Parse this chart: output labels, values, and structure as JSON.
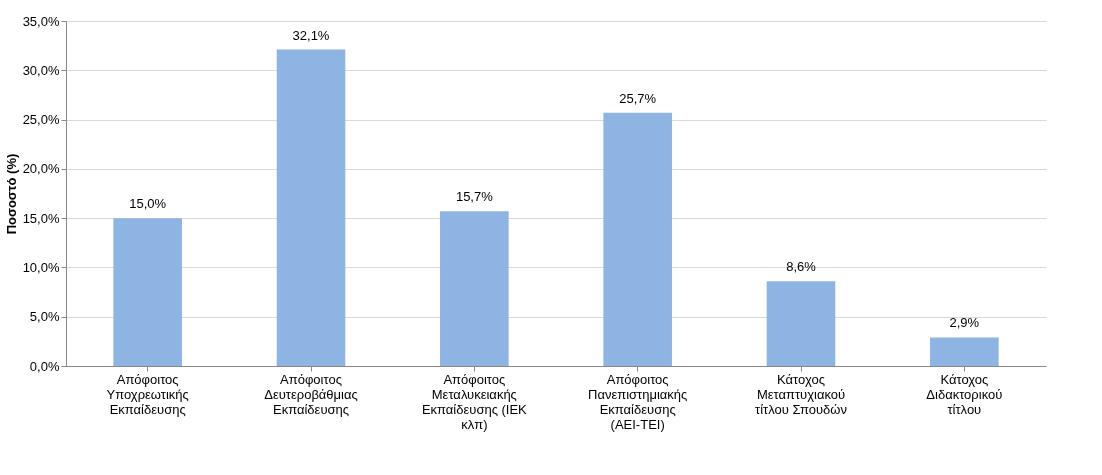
{
  "chart_data": {
    "type": "bar",
    "ylabel": "Ποσοστό (%)",
    "categories": [
      "Απόφοιτος Υποχρεωτικής Εκπαίδευσης",
      "Απόφοιτος Δευτεροβάθμιας Εκπαίδευσης",
      "Απόφοιτος Μεταλυκειακής Εκπαίδευσης (ΙΕΚ κλπ)",
      "Απόφοιτος Πανεπιστημιακής Εκπαίδευσης (ΑΕΙ-ΤΕΙ)",
      "Κάτοχος Μεταπτυχιακού τίτλου Σπουδών",
      "Κάτοχος Διδακτορικού τίτλου"
    ],
    "values": [
      15.0,
      32.1,
      15.7,
      25.7,
      8.6,
      2.9
    ],
    "value_labels": [
      "15,0%",
      "32,1%",
      "15,7%",
      "25,7%",
      "8,6%",
      "2,9%"
    ],
    "color": "#8eb4e3",
    "ylim": [
      0,
      35
    ],
    "yticks": [
      {
        "value": 0,
        "label": "0,0%"
      },
      {
        "value": 5,
        "label": "5,0%"
      },
      {
        "value": 10,
        "label": "10,0%"
      },
      {
        "value": 15,
        "label": "15,0%"
      },
      {
        "value": 20,
        "label": "20,0%"
      },
      {
        "value": 25,
        "label": "25,0%"
      },
      {
        "value": 30,
        "label": "30,0%"
      },
      {
        "value": 35,
        "label": "35,0%"
      }
    ],
    "grid": "y"
  }
}
